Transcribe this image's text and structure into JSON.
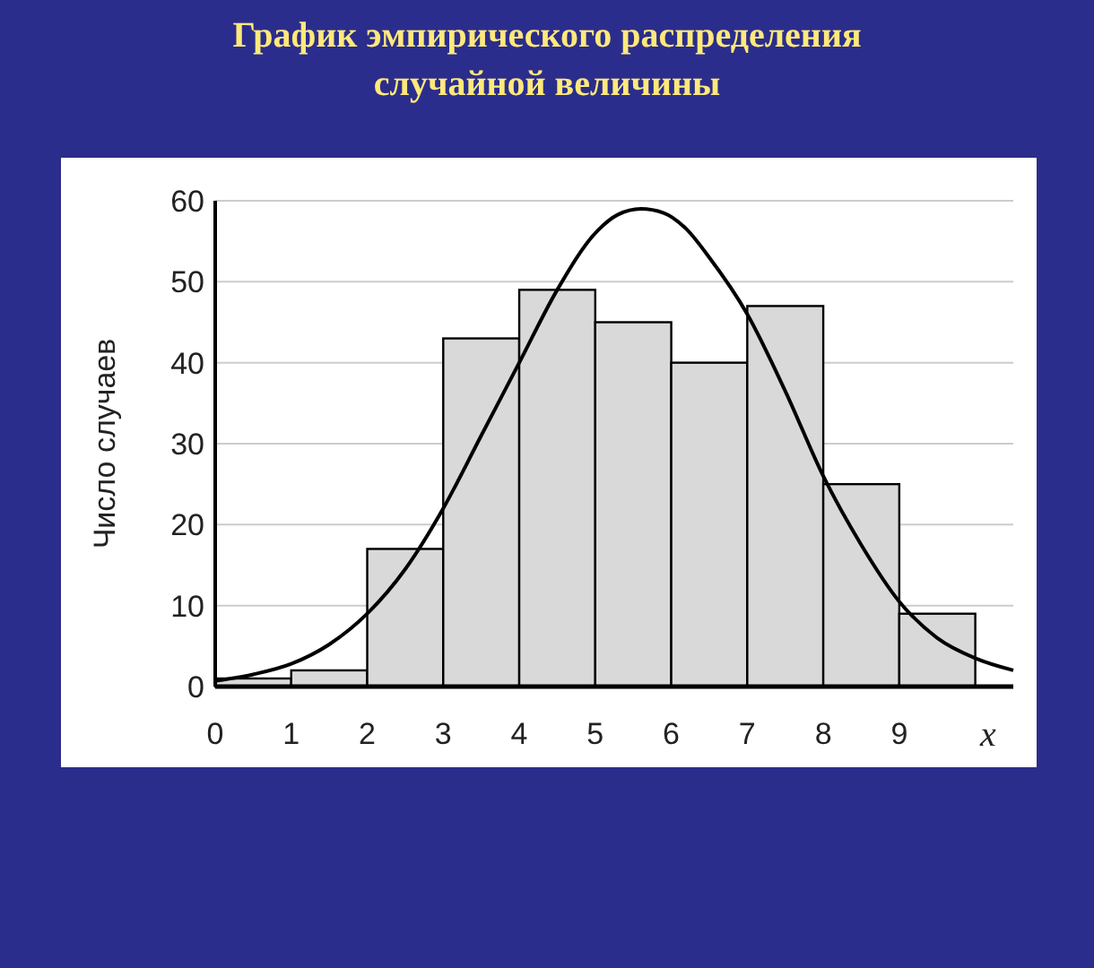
{
  "chart_data": {
    "type": "histogram",
    "title": "График эмпирического распределения случайной величины",
    "xlabel": "x",
    "ylabel": "Число случаев",
    "bins": [
      0,
      1,
      2,
      3,
      4,
      5,
      6,
      7,
      8,
      9,
      10
    ],
    "values": [
      1,
      2,
      17,
      43,
      49,
      45,
      40,
      47,
      25,
      9
    ],
    "color": "#d9d9d9",
    "series": [
      {
        "type": "line",
        "color": "#000000",
        "x": [
          0,
          0.5,
          1,
          1.5,
          2,
          2.5,
          3,
          3.5,
          4,
          4.5,
          5,
          5.3,
          5.6,
          5.9,
          6.2,
          6.5,
          7,
          7.5,
          8,
          8.5,
          9,
          9.5,
          10,
          10.5
        ],
        "values": [
          0.7,
          1.5,
          2.8,
          5.2,
          9,
          14.5,
          22,
          31,
          40,
          49,
          56,
          58.3,
          59,
          58.5,
          56.5,
          53,
          46,
          36.5,
          26,
          17.5,
          10.5,
          6,
          3.5,
          2
        ]
      }
    ],
    "xlim": [
      0,
      10.5
    ],
    "ylim": [
      0,
      60
    ],
    "xticks": [
      0,
      1,
      2,
      3,
      4,
      5,
      6,
      7,
      8,
      9
    ],
    "yticks": [
      0,
      10,
      20,
      30,
      40,
      50,
      60
    ],
    "grid": "y"
  }
}
